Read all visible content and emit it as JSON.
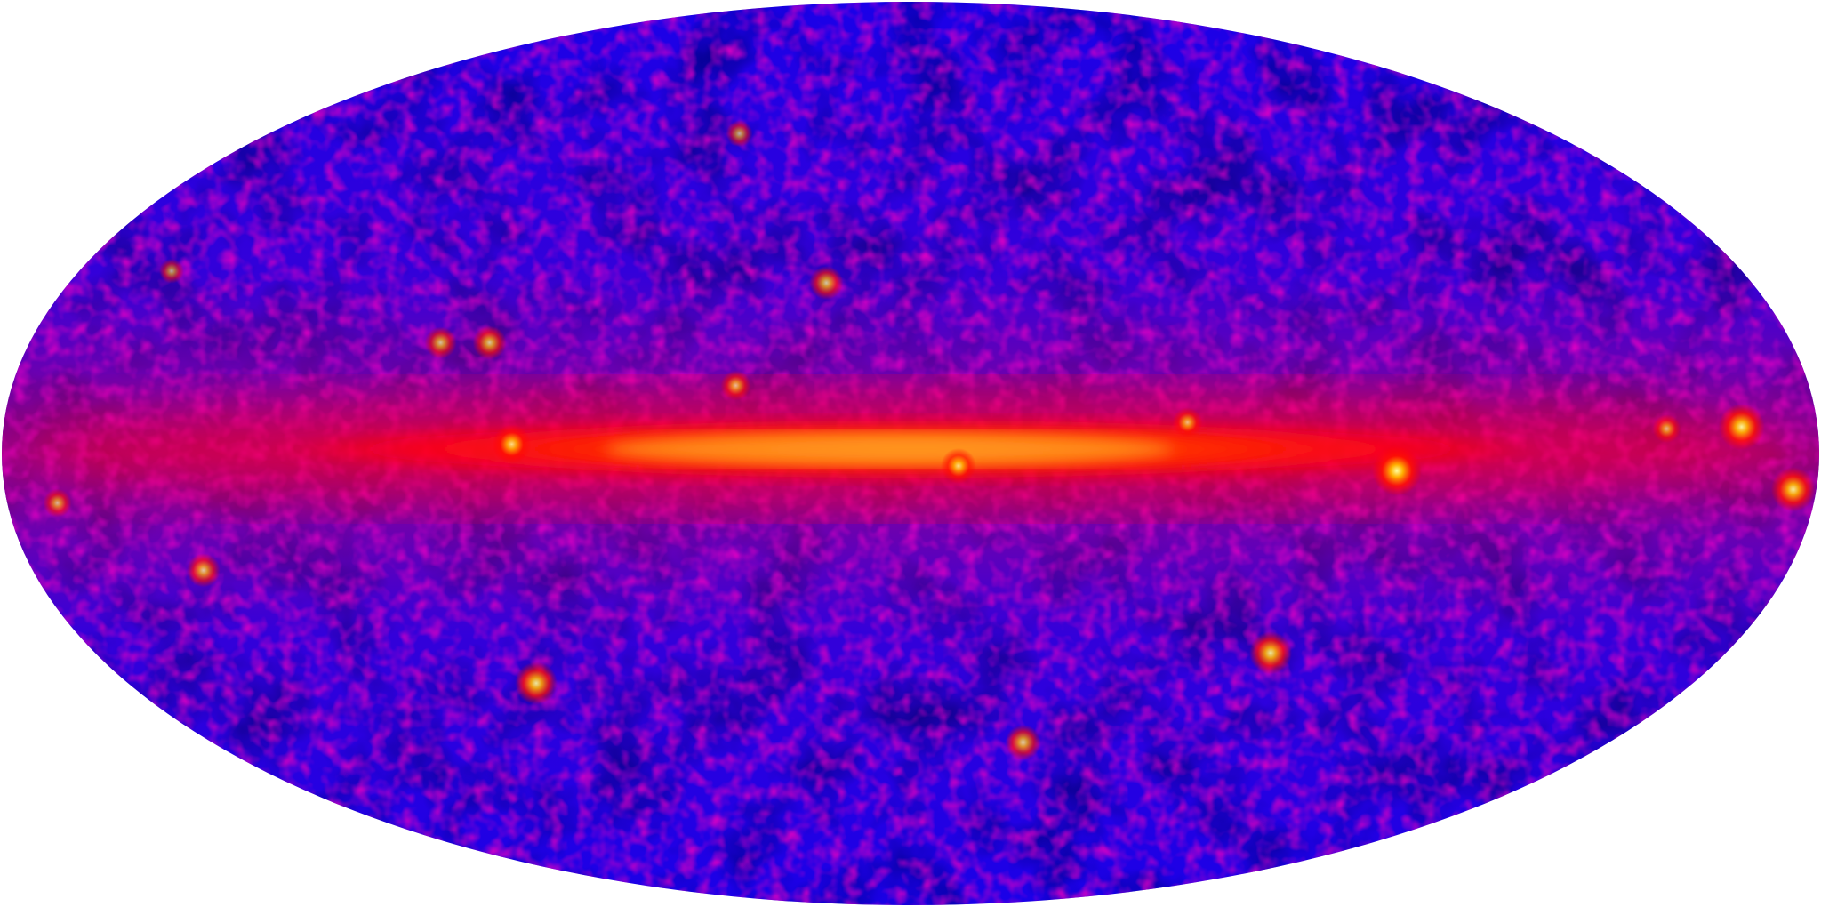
{
  "image": {
    "projection": "mollweide",
    "coordinate_frame": "galactic",
    "colors": {
      "background": "#ffffff",
      "sky_dark": "#000060",
      "sky_base": "#1a00e8",
      "diffuse": "#c0008a",
      "plane": "#ff1a00",
      "plane_core": "#ff7a00",
      "hot": "#ffff80"
    },
    "point_sources": [
      {
        "lon": 263.6,
        "lat": -2.8,
        "intensity": 1.0
      },
      {
        "lon": 195.1,
        "lat": 4.3,
        "intensity": 0.9
      },
      {
        "lon": 184.6,
        "lat": -5.8,
        "intensity": 0.85
      },
      {
        "lon": 280.5,
        "lat": -32.9,
        "intensity": 0.8
      },
      {
        "lon": 86.1,
        "lat": -38.2,
        "intensity": 0.8
      },
      {
        "lon": 331.0,
        "lat": -49.0,
        "intensity": 0.6
      },
      {
        "lon": 18.0,
        "lat": 28.0,
        "intensity": 0.55
      },
      {
        "lon": 86.0,
        "lat": 18.0,
        "intensity": 0.55
      },
      {
        "lon": 96.0,
        "lat": 18.0,
        "intensity": 0.5
      },
      {
        "lon": 145.0,
        "lat": -19.0,
        "intensity": 0.55
      },
      {
        "lon": 350.5,
        "lat": -2.0,
        "intensity": 0.6
      },
      {
        "lon": 79.0,
        "lat": 1.5,
        "intensity": 0.7
      },
      {
        "lon": 35.0,
        "lat": 11.0,
        "intensity": 0.45
      },
      {
        "lon": 305.0,
        "lat": 5.0,
        "intensity": 0.45
      },
      {
        "lon": 210.0,
        "lat": 4.0,
        "intensity": 0.4
      },
      {
        "lon": 170.0,
        "lat": -8.0,
        "intensity": 0.4
      },
      {
        "lon": 48.0,
        "lat": 55.0,
        "intensity": 0.35
      },
      {
        "lon": 160.0,
        "lat": 30.0,
        "intensity": 0.3
      }
    ]
  }
}
